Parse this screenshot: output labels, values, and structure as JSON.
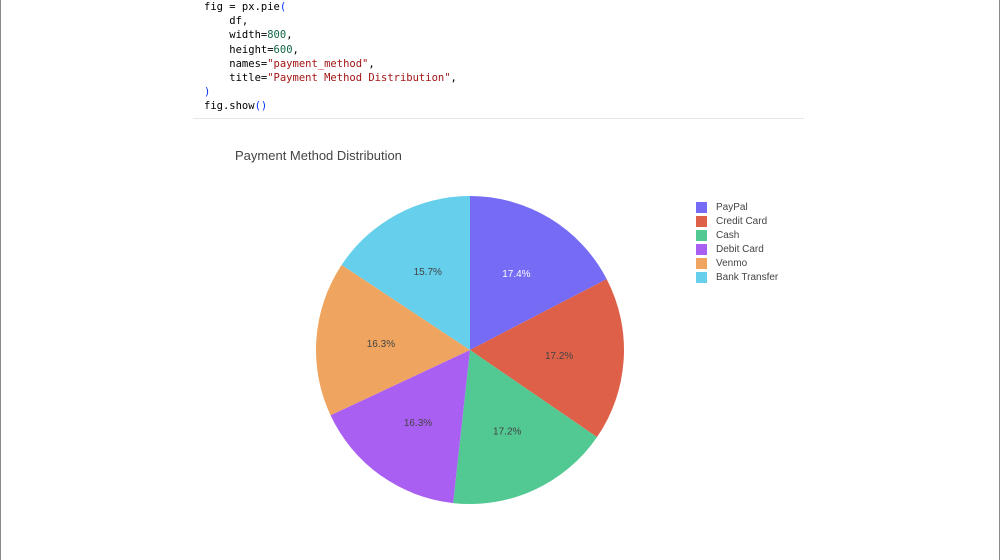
{
  "code": {
    "lines": [
      [
        {
          "t": "fig = px.pie",
          "c": ""
        },
        {
          "t": "(",
          "c": "kw-paren"
        }
      ],
      [
        {
          "t": "    df,",
          "c": ""
        }
      ],
      [
        {
          "t": "    width=",
          "c": ""
        },
        {
          "t": "800",
          "c": "kw-num"
        },
        {
          "t": ",",
          "c": ""
        }
      ],
      [
        {
          "t": "    height=",
          "c": ""
        },
        {
          "t": "600",
          "c": "kw-num"
        },
        {
          "t": ",",
          "c": ""
        }
      ],
      [
        {
          "t": "    names=",
          "c": ""
        },
        {
          "t": "\"payment_method\"",
          "c": "kw-str"
        },
        {
          "t": ",",
          "c": ""
        }
      ],
      [
        {
          "t": "    title=",
          "c": ""
        },
        {
          "t": "\"Payment Method Distribution\"",
          "c": "kw-str"
        },
        {
          "t": ",",
          "c": ""
        }
      ],
      [
        {
          "t": ")",
          "c": "kw-paren"
        }
      ],
      [
        {
          "t": "fig.show",
          "c": ""
        },
        {
          "t": "()",
          "c": "kw-paren"
        }
      ]
    ]
  },
  "chart_data": {
    "type": "pie",
    "title": "Payment Method Distribution",
    "labels": [
      "PayPal",
      "Credit Card",
      "Cash",
      "Debit Card",
      "Venmo",
      "Bank Transfer"
    ],
    "values": [
      17.4,
      17.2,
      17.2,
      16.3,
      16.3,
      15.7
    ],
    "text_labels": [
      "17.4%",
      "17.2%",
      "17.2%",
      "16.3%",
      "16.3%",
      "15.7%"
    ],
    "colors": [
      "#756bf5",
      "#df6049",
      "#52c893",
      "#a95ff1",
      "#efa560",
      "#65cfec"
    ],
    "legend_position": "top-right",
    "direction": "clockwise",
    "start": "top"
  }
}
